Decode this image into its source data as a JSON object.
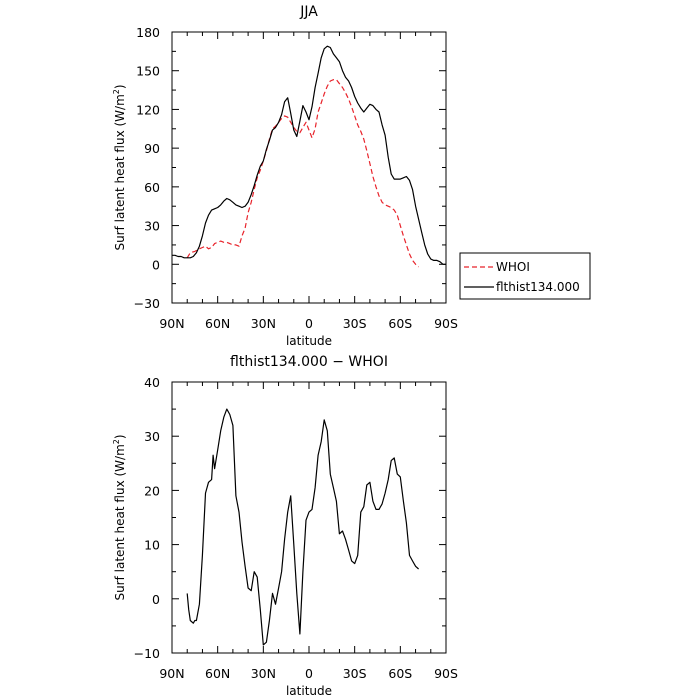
{
  "chart_data": [
    {
      "type": "line",
      "title": "JJA",
      "xlabel": "latitude",
      "ylabel": "Surf latent heat flux (W/m²)",
      "ylabel_main": "Surf latent heat flux (W/m",
      "ylabel_sup": "2",
      "ylabel_tail": ")",
      "xlim": [
        -90,
        90
      ],
      "ylim": [
        -30,
        180
      ],
      "xticks": [
        {
          "value": -90,
          "label": "90N"
        },
        {
          "value": -60,
          "label": "60N"
        },
        {
          "value": -30,
          "label": "30N"
        },
        {
          "value": 0,
          "label": "0"
        },
        {
          "value": 30,
          "label": "30S"
        },
        {
          "value": 60,
          "label": "60S"
        },
        {
          "value": 90,
          "label": "90S"
        }
      ],
      "yticks": [
        {
          "value": -30,
          "label": "−30"
        },
        {
          "value": 0,
          "label": "0"
        },
        {
          "value": 30,
          "label": "30"
        },
        {
          "value": 60,
          "label": "60"
        },
        {
          "value": 90,
          "label": "90"
        },
        {
          "value": 120,
          "label": "120"
        },
        {
          "value": 150,
          "label": "150"
        },
        {
          "value": 180,
          "label": "180"
        }
      ],
      "legend_position": "right, outside",
      "series": [
        {
          "name": "WHOI",
          "color": "#e8232b",
          "style": "dashed",
          "x": [
            -80,
            -78,
            -75,
            -72,
            -70,
            -68,
            -66,
            -64,
            -62,
            -60,
            -58,
            -56,
            -54,
            -52,
            -50,
            -48,
            -46,
            -44,
            -42,
            -40,
            -38,
            -36,
            -34,
            -32,
            -30,
            -28,
            -26,
            -24,
            -22,
            -20,
            -18,
            -16,
            -14,
            -12,
            -10,
            -8,
            -6,
            -4,
            -2,
            0,
            2,
            4,
            6,
            8,
            10,
            12,
            14,
            16,
            18,
            20,
            22,
            24,
            26,
            28,
            30,
            32,
            34,
            36,
            38,
            40,
            42,
            44,
            46,
            48,
            50,
            52,
            54,
            56,
            58,
            60,
            62,
            64,
            66,
            68,
            70,
            72
          ],
          "y": [
            5,
            9,
            10,
            12,
            13,
            14,
            12,
            13,
            16,
            17,
            18,
            17,
            17,
            16,
            15,
            15,
            14,
            22,
            28,
            40,
            48,
            58,
            67,
            73,
            80,
            88,
            97,
            105,
            107,
            110,
            113,
            115,
            114,
            110,
            106,
            103,
            102,
            106,
            110,
            104,
            98,
            105,
            118,
            125,
            132,
            138,
            142,
            143,
            143,
            140,
            137,
            133,
            128,
            122,
            115,
            108,
            103,
            97,
            88,
            78,
            68,
            60,
            53,
            48,
            46,
            45,
            44,
            42,
            38,
            30,
            22,
            15,
            8,
            3,
            0,
            -2
          ]
        },
        {
          "name": "flthist134.000",
          "color": "#000000",
          "style": "solid",
          "x": [
            -90,
            -88,
            -86,
            -84,
            -82,
            -80,
            -78,
            -76,
            -74,
            -72,
            -70,
            -68,
            -66,
            -64,
            -62,
            -60,
            -58,
            -56,
            -54,
            -52,
            -50,
            -48,
            -46,
            -44,
            -42,
            -40,
            -38,
            -36,
            -34,
            -32,
            -30,
            -28,
            -26,
            -24,
            -22,
            -20,
            -18,
            -16,
            -14,
            -12,
            -10,
            -8,
            -6,
            -4,
            -2,
            0,
            2,
            4,
            6,
            8,
            10,
            12,
            14,
            16,
            18,
            20,
            22,
            24,
            26,
            28,
            30,
            32,
            34,
            36,
            38,
            40,
            42,
            44,
            46,
            48,
            50,
            52,
            54,
            56,
            58,
            60,
            62,
            64,
            66,
            68,
            70,
            72,
            74,
            76,
            78,
            80,
            82,
            84,
            86,
            88,
            90
          ],
          "y": [
            7,
            7,
            6,
            6,
            5,
            5,
            5,
            6,
            9,
            14,
            22,
            32,
            38,
            42,
            43,
            44,
            46,
            49,
            51,
            50,
            48,
            46,
            45,
            44,
            45,
            48,
            54,
            61,
            69,
            76,
            80,
            89,
            96,
            104,
            106,
            110,
            116,
            126,
            129,
            117,
            104,
            99,
            111,
            123,
            118,
            112,
            122,
            137,
            148,
            160,
            167,
            169,
            168,
            163,
            160,
            157,
            150,
            145,
            142,
            137,
            130,
            125,
            121,
            118,
            121,
            124,
            123,
            120,
            118,
            108,
            100,
            83,
            70,
            66,
            66,
            66,
            67,
            68,
            65,
            58,
            45,
            35,
            25,
            15,
            8,
            4,
            3,
            3,
            2,
            0,
            0
          ]
        }
      ]
    },
    {
      "type": "line",
      "title": "flthist134.000 − WHOI",
      "xlabel": "latitude",
      "ylabel": "Surf latent heat flux (W/m²)",
      "ylabel_main": "Surf latent heat flux (W/m",
      "ylabel_sup": "2",
      "ylabel_tail": ")",
      "xlim": [
        -90,
        90
      ],
      "ylim": [
        -10,
        40
      ],
      "xticks": [
        {
          "value": -90,
          "label": "90N"
        },
        {
          "value": -60,
          "label": "60N"
        },
        {
          "value": -30,
          "label": "30N"
        },
        {
          "value": 0,
          "label": "0"
        },
        {
          "value": 30,
          "label": "30S"
        },
        {
          "value": 60,
          "label": "60S"
        },
        {
          "value": 90,
          "label": "90S"
        }
      ],
      "yticks": [
        {
          "value": -10,
          "label": "−10"
        },
        {
          "value": 0,
          "label": "0"
        },
        {
          "value": 10,
          "label": "10"
        },
        {
          "value": 20,
          "label": "20"
        },
        {
          "value": 30,
          "label": "30"
        },
        {
          "value": 40,
          "label": "40"
        }
      ],
      "series": [
        {
          "color": "#000000",
          "style": "solid",
          "x": [
            -80,
            -79,
            -78,
            -76,
            -75,
            -74,
            -72,
            -70,
            -68,
            -66,
            -64,
            -63,
            -62,
            -60,
            -58,
            -56,
            -54,
            -52,
            -50,
            -48,
            -46,
            -44,
            -42,
            -40,
            -38,
            -36,
            -34,
            -32,
            -30,
            -28,
            -26,
            -24,
            -22,
            -20,
            -18,
            -16,
            -14,
            -12,
            -10,
            -8,
            -6,
            -4,
            -2,
            0,
            2,
            4,
            6,
            8,
            10,
            12,
            14,
            16,
            18,
            20,
            22,
            24,
            26,
            28,
            30,
            32,
            34,
            36,
            38,
            40,
            42,
            44,
            46,
            48,
            50,
            52,
            54,
            56,
            58,
            60,
            62,
            64,
            66,
            68,
            70,
            72
          ],
          "y": [
            1,
            -2,
            -4,
            -4.5,
            -4,
            -4,
            -1,
            8,
            19.5,
            21.5,
            22,
            26.5,
            24,
            27.5,
            31,
            33.5,
            35,
            34,
            32,
            19,
            16,
            10.5,
            6,
            2,
            1.5,
            5,
            4,
            -2,
            -8.5,
            -8,
            -4,
            1,
            -1,
            2,
            5,
            11,
            16,
            19,
            10,
            1,
            -6.5,
            5,
            14.5,
            16,
            16.5,
            20.5,
            26.5,
            29,
            33,
            31,
            23,
            20.5,
            18,
            12,
            12.5,
            11,
            9,
            7,
            6.5,
            8,
            16,
            17,
            21,
            21.5,
            18,
            16.5,
            16.5,
            17.5,
            19.5,
            22,
            25.5,
            26,
            23,
            22.5,
            18,
            14,
            8,
            7,
            6,
            5.5
          ]
        }
      ]
    }
  ]
}
